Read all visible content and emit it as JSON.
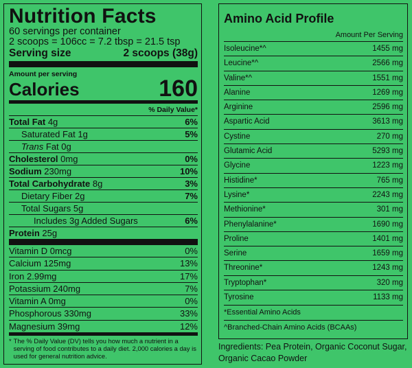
{
  "nutrition": {
    "title": "Nutrition Facts",
    "servings_per_container": "60 servings per container",
    "serving_equiv": "2 scoops = 106cc = 7.2 tbsp = 21.5 tsp",
    "serving_size_label": "Serving size",
    "serving_size_value": "2 scoops (38g)",
    "amount_per_serving": "Amount per serving",
    "calories_label": "Calories",
    "calories_value": "160",
    "dv_header": "% Daily Value*",
    "rows": [
      {
        "label": "Total Fat",
        "amount": "4g",
        "pct": "6%"
      },
      {
        "label": "Saturated Fat",
        "amount": "1g",
        "pct": "5%"
      },
      {
        "label": "Trans",
        "amount": "Fat 0g",
        "pct": ""
      },
      {
        "label": "Cholesterol",
        "amount": "0mg",
        "pct": "0%"
      },
      {
        "label": "Sodium",
        "amount": "230mg",
        "pct": "10%"
      },
      {
        "label": "Total Carbohydrate",
        "amount": "8g",
        "pct": "3%"
      },
      {
        "label": "Dietary Fiber",
        "amount": "2g",
        "pct": "7%"
      },
      {
        "label": "Total Sugars",
        "amount": "5g",
        "pct": ""
      },
      {
        "label": "Includes 3g Added Sugars",
        "amount": "",
        "pct": "6%"
      },
      {
        "label": "Protein",
        "amount": "25g",
        "pct": ""
      }
    ],
    "vitamins": [
      {
        "label": "Vitamin D 0mcg",
        "pct": "0%"
      },
      {
        "label": "Calcium 125mg",
        "pct": "13%"
      },
      {
        "label": "Iron 2.99mg",
        "pct": "17%"
      },
      {
        "label": "Potassium 240mg",
        "pct": "7%"
      },
      {
        "label": "Vitamin A 0mg",
        "pct": "0%"
      },
      {
        "label": "Phosphorous 330mg",
        "pct": "33%"
      },
      {
        "label": "Magnesium 39mg",
        "pct": "12%"
      }
    ],
    "footnote_star": "*",
    "footnote": "The % Daily Value (DV) tells you how much a nutrient in a serving of food contributes to a daily diet. 2,000 calories a day is used for general nutrition advice."
  },
  "amino": {
    "title": "Amino Acid Profile",
    "column_header": "Amount Per Serving",
    "rows": [
      {
        "name": "Isoleucine*^",
        "amount": "1455 mg"
      },
      {
        "name": "Leucine*^",
        "amount": "2566 mg"
      },
      {
        "name": "Valine*^",
        "amount": "1551 mg"
      },
      {
        "name": "Alanine",
        "amount": "1269 mg"
      },
      {
        "name": "Arginine",
        "amount": "2596 mg"
      },
      {
        "name": "Aspartic Acid",
        "amount": "3613 mg"
      },
      {
        "name": "Cystine",
        "amount": "270 mg"
      },
      {
        "name": "Glutamic Acid",
        "amount": "5293 mg"
      },
      {
        "name": "Glycine",
        "amount": "1223 mg"
      },
      {
        "name": "Histidine*",
        "amount": "765 mg"
      },
      {
        "name": "Lysine*",
        "amount": "2243 mg"
      },
      {
        "name": "Methionine*",
        "amount": "301 mg"
      },
      {
        "name": "Phenylalanine*",
        "amount": "1690 mg"
      },
      {
        "name": "Proline",
        "amount": "1401 mg"
      },
      {
        "name": "Serine",
        "amount": "1659 mg"
      },
      {
        "name": "Threonine*",
        "amount": "1243 mg"
      },
      {
        "name": "Tryptophan*",
        "amount": "320 mg"
      },
      {
        "name": "Tyrosine",
        "amount": "1133 mg"
      }
    ],
    "note_essential": "*Essential Amino Acids",
    "note_bcaa": "^Branched-Chain Amino Acids (BCAAs)"
  },
  "ingredients": "Ingredients: Pea Protein, Organic Coconut Sugar, Organic Cacao Powder",
  "colors": {
    "background": "#3fc56a",
    "ink": "#111111"
  }
}
